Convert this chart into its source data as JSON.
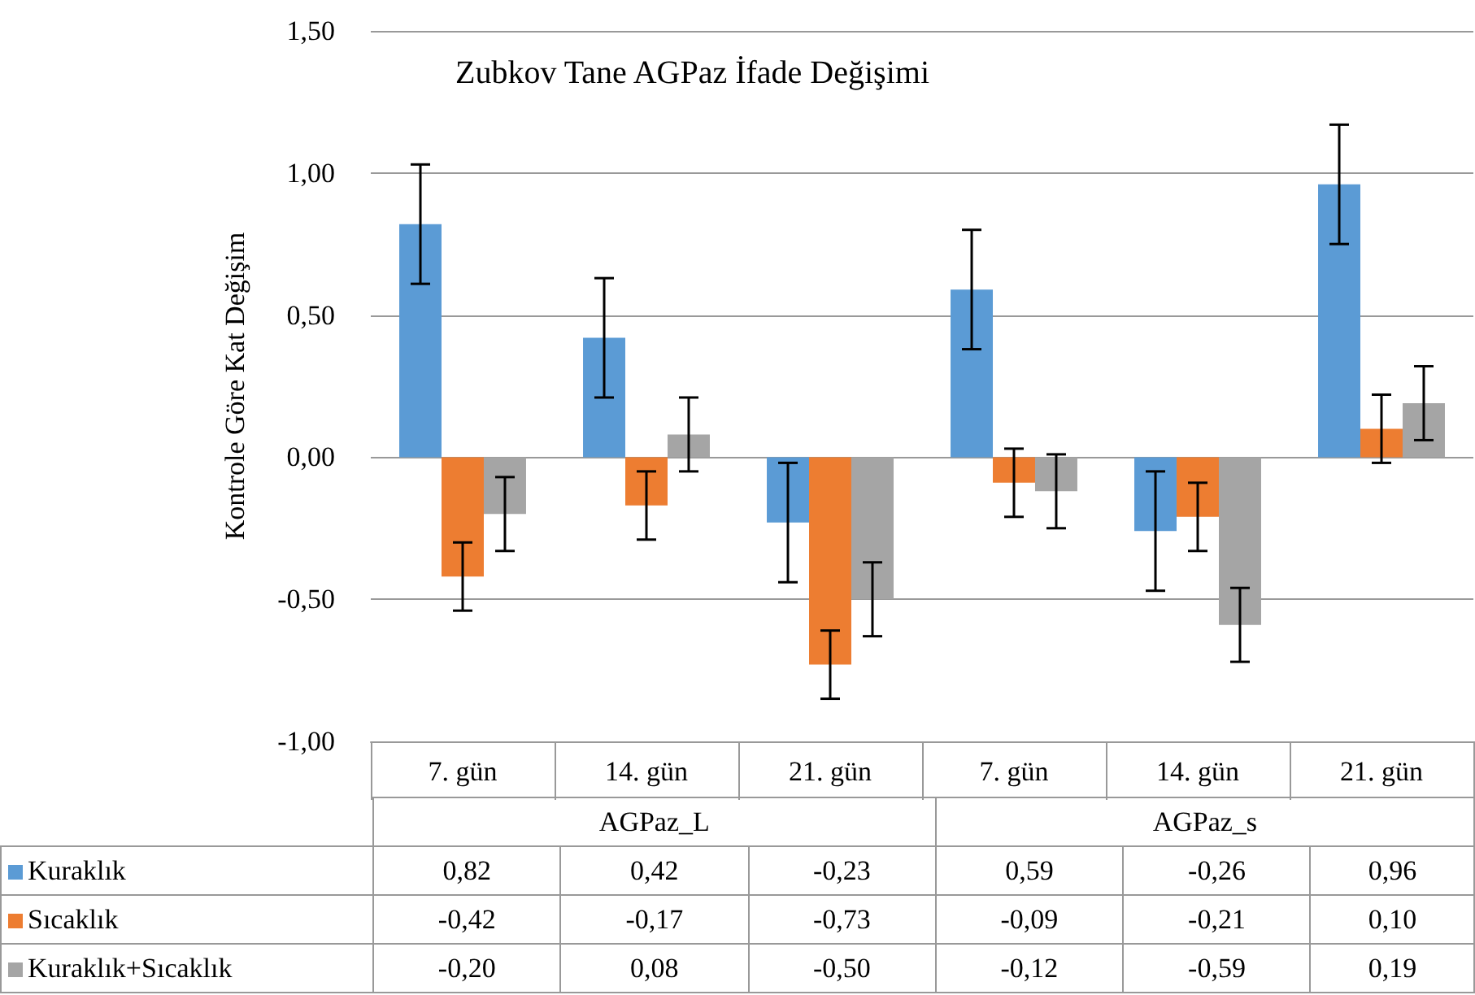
{
  "chart_data": {
    "type": "bar",
    "title": "Zubkov Tane AGPaz İfade Değişimi",
    "ylabel": "Kontrole Göre Kat Değişim",
    "categories": [
      "7. gün",
      "14. gün",
      "21. gün",
      "7. gün",
      "14. gün",
      "21. gün"
    ],
    "annotations": [
      "AGPaz_L",
      "AGPaz_s"
    ],
    "series": [
      {
        "name": "Kuraklık",
        "color": "#5b9bd5",
        "values": [
          0.82,
          0.42,
          -0.23,
          0.59,
          -0.26,
          0.96
        ],
        "errors": [
          0.21,
          0.21,
          0.21,
          0.21,
          0.21,
          0.21
        ],
        "value_labels": [
          "0,82",
          "0,42",
          "-0,23",
          "0,59",
          "-0,26",
          "0,96"
        ]
      },
      {
        "name": "Sıcaklık",
        "color": "#ed7d31",
        "values": [
          -0.42,
          -0.17,
          -0.73,
          -0.09,
          -0.21,
          0.1
        ],
        "errors": [
          0.12,
          0.12,
          0.12,
          0.12,
          0.12,
          0.12
        ],
        "value_labels": [
          "-0,42",
          "-0,17",
          "-0,73",
          "-0,09",
          "-0,21",
          "0,10"
        ]
      },
      {
        "name": "Kuraklık+Sıcaklık",
        "color": "#a5a5a5",
        "values": [
          -0.2,
          0.08,
          -0.5,
          -0.12,
          -0.59,
          0.19
        ],
        "errors": [
          0.13,
          0.13,
          0.13,
          0.13,
          0.13,
          0.13
        ],
        "value_labels": [
          "-0,20",
          "0,08",
          "-0,50",
          "-0,12",
          "-0,59",
          "0,19"
        ]
      }
    ],
    "ylim": [
      -1,
      1.5
    ],
    "yticks": [
      {
        "value": -1,
        "label": "-1,00"
      },
      {
        "value": -0.5,
        "label": "-0,50"
      },
      {
        "value": 0,
        "label": "0,00"
      },
      {
        "value": 0.5,
        "label": "0,50"
      },
      {
        "value": 1,
        "label": "1,00"
      },
      {
        "value": 1.5,
        "label": "1,50"
      }
    ],
    "grid": "y",
    "legend": "bottom left"
  }
}
